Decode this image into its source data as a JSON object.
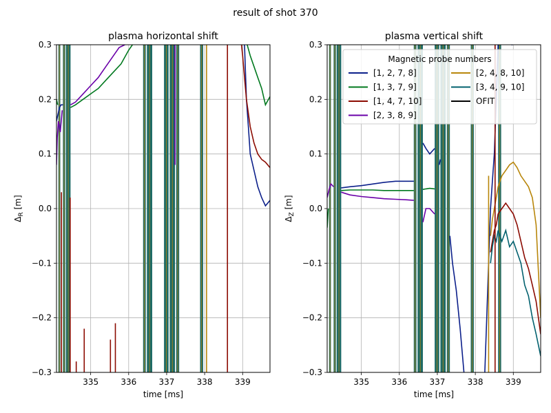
{
  "figure": {
    "suptitle": "result of shot 370"
  },
  "colors": {
    "series": [
      "#0b1f8a",
      "#00781e",
      "#8b0a00",
      "#6a00a8",
      "#b8860b",
      "#00606e",
      "#000000"
    ],
    "grid": "#b0b0b0",
    "band": "#1f6b66"
  },
  "chart_data": [
    {
      "type": "line",
      "title": "plasma horizontal shift",
      "xlabel": "time [ms]",
      "ylabel_main": "Δ",
      "ylabel_sub": "R",
      "ylabel_unit": " [m]",
      "xlim": [
        334.1,
        339.72
      ],
      "ylim": [
        -0.3,
        0.3
      ],
      "xticks": [
        335,
        336,
        337,
        338,
        339
      ],
      "yticks": [
        -0.3,
        -0.2,
        -0.1,
        0.0,
        0.1,
        0.2,
        0.3
      ],
      "ytick_labels": [
        "−0.3",
        "−0.2",
        "−0.1",
        "0.0",
        "0.1",
        "0.2",
        "0.3"
      ],
      "grid": true,
      "bands": [
        [
          334.15,
          334.2
        ],
        [
          334.27,
          334.33
        ],
        [
          334.35,
          334.47
        ],
        [
          336.38,
          336.45
        ],
        [
          336.48,
          336.62
        ],
        [
          336.93,
          337.05
        ],
        [
          337.08,
          337.22
        ],
        [
          337.25,
          337.33
        ],
        [
          337.88,
          337.96
        ]
      ],
      "series": [
        {
          "x": [
            334.1,
            334.13,
            334.18,
            334.22,
            334.27
          ],
          "y": [
            0.16,
            0.17,
            0.185,
            0.19,
            0.19
          ]
        },
        {
          "x": [
            334.1,
            334.13
          ],
          "y": [
            0.2,
            0.19
          ]
        },
        {
          "x": [
            334.1,
            334.12,
            334.15,
            334.2,
            334.25
          ],
          "y": [
            0.08,
            0.13,
            0.16,
            0.14,
            0.18
          ]
        },
        {
          "x": [
            334.47,
            334.6,
            334.8,
            335.0,
            335.2,
            335.4,
            335.6,
            335.75,
            335.9
          ],
          "y": [
            0.19,
            0.195,
            0.21,
            0.225,
            0.24,
            0.26,
            0.28,
            0.295,
            0.3
          ]
        },
        {
          "x": [
            334.47,
            334.6,
            334.8,
            335.0,
            335.2,
            335.4,
            335.6,
            335.8,
            336.0,
            336.1
          ],
          "y": [
            0.185,
            0.19,
            0.2,
            0.21,
            0.22,
            0.235,
            0.25,
            0.265,
            0.29,
            0.3
          ]
        },
        {
          "x": [
            339.05,
            339.1,
            339.15,
            339.2,
            339.3,
            339.4,
            339.5,
            339.6,
            339.72
          ],
          "y": [
            0.3,
            0.2,
            0.15,
            0.1,
            0.07,
            0.04,
            0.02,
            0.005,
            0.015
          ]
        },
        {
          "x": [
            339.12,
            339.2,
            339.3,
            339.4,
            339.5,
            339.6,
            339.72
          ],
          "y": [
            0.3,
            0.28,
            0.26,
            0.24,
            0.22,
            0.19,
            0.205
          ]
        },
        {
          "x": [
            338.97,
            339.0,
            339.05,
            339.1,
            339.2,
            339.3,
            339.4,
            339.5,
            339.6,
            339.72
          ],
          "y": [
            0.3,
            0.28,
            0.24,
            0.2,
            0.15,
            0.12,
            0.1,
            0.09,
            0.085,
            0.075
          ]
        }
      ],
      "series_color_index": [
        0,
        1,
        3,
        3,
        1,
        0,
        1,
        2
      ],
      "spikes": [
        {
          "x": 334.23,
          "y": [
            -0.3,
            0.03
          ],
          "c": 2
        },
        {
          "x": 334.46,
          "y": [
            -0.3,
            0.02
          ],
          "c": 2
        },
        {
          "x": 334.62,
          "y": [
            -0.3,
            -0.28
          ],
          "c": 2
        },
        {
          "x": 334.83,
          "y": [
            -0.3,
            -0.22
          ],
          "c": 2
        },
        {
          "x": 335.52,
          "y": [
            -0.3,
            -0.24
          ],
          "c": 2
        },
        {
          "x": 335.65,
          "y": [
            -0.3,
            -0.21
          ],
          "c": 2
        },
        {
          "x": 338.6,
          "y": [
            -0.3,
            0.3
          ],
          "c": 2
        },
        {
          "x": 337.22,
          "y": [
            0.08,
            0.3
          ],
          "c": 3
        },
        {
          "x": 338.05,
          "y": [
            -0.3,
            0.3
          ],
          "c": 4
        }
      ]
    },
    {
      "type": "line",
      "title": "plasma vertical shift",
      "xlabel": "time [ms]",
      "ylabel_main": "Δ",
      "ylabel_sub": "Z",
      "ylabel_unit": " [m]",
      "xlim": [
        334.1,
        339.72
      ],
      "ylim": [
        -0.3,
        0.3
      ],
      "xticks": [
        335,
        336,
        337,
        338,
        339
      ],
      "yticks": [
        -0.3,
        -0.2,
        -0.1,
        0.0,
        0.1,
        0.2,
        0.3
      ],
      "ytick_labels": [
        "−0.3",
        "−0.2",
        "−0.1",
        "0.0",
        "0.1",
        "0.2",
        "0.3"
      ],
      "grid": true,
      "bands": [
        [
          334.15,
          334.2
        ],
        [
          334.27,
          334.33
        ],
        [
          334.35,
          334.47
        ],
        [
          336.38,
          336.45
        ],
        [
          336.48,
          336.62
        ],
        [
          336.93,
          337.05
        ],
        [
          337.08,
          337.22
        ],
        [
          337.25,
          337.33
        ],
        [
          337.88,
          337.96
        ],
        [
          338.6,
          338.68
        ]
      ],
      "series": [
        {
          "x": [
            334.47,
            334.7,
            335.0,
            335.3,
            335.6,
            335.9,
            336.2,
            336.38
          ],
          "y": [
            0.038,
            0.04,
            0.042,
            0.045,
            0.048,
            0.05,
            0.05,
            0.05
          ]
        },
        {
          "x": [
            334.47,
            334.7,
            335.0,
            335.3,
            335.6,
            335.9,
            336.2,
            336.38
          ],
          "y": [
            0.033,
            0.034,
            0.034,
            0.034,
            0.033,
            0.033,
            0.033,
            0.033
          ]
        },
        {
          "x": [
            334.47,
            334.7,
            335.0,
            335.3,
            335.6,
            335.9,
            336.2,
            336.38
          ],
          "y": [
            0.03,
            0.025,
            0.022,
            0.02,
            0.018,
            0.017,
            0.016,
            0.015
          ]
        },
        {
          "x": [
            334.1,
            334.15,
            334.2,
            334.27
          ],
          "y": [
            0.02,
            0.035,
            0.045,
            0.04
          ]
        },
        {
          "x": [
            334.1,
            334.13
          ],
          "y": [
            -0.035,
            0.0
          ]
        },
        {
          "x": [
            336.62,
            336.7,
            336.8,
            336.93
          ],
          "y": [
            0.035,
            0.036,
            0.037,
            0.036
          ]
        },
        {
          "x": [
            336.62,
            336.7,
            336.8,
            336.93
          ],
          "y": [
            0.12,
            0.11,
            0.1,
            0.11
          ]
        },
        {
          "x": [
            336.62,
            336.7,
            336.8,
            336.93
          ],
          "y": [
            -0.025,
            0.0,
            0.0,
            -0.01
          ]
        },
        {
          "x": [
            337.05,
            337.08
          ],
          "y": [
            0.08,
            0.09
          ]
        },
        {
          "x": [
            337.33,
            337.4,
            337.5,
            337.6,
            337.7
          ],
          "y": [
            -0.05,
            -0.1,
            -0.15,
            -0.22,
            -0.3
          ]
        },
        {
          "x": [
            338.25,
            338.3,
            338.35,
            338.4,
            338.45,
            338.5,
            338.55,
            338.6
          ],
          "y": [
            -0.3,
            -0.2,
            -0.1,
            0.0,
            0.05,
            0.1,
            0.2,
            0.3
          ]
        },
        {
          "x": [
            338.4,
            338.45,
            338.5,
            338.55,
            338.6,
            338.7,
            338.8,
            338.9,
            339.0,
            339.1,
            339.2,
            339.3,
            339.4,
            339.5,
            339.6,
            339.72
          ],
          "y": [
            -0.05,
            -0.02,
            0.0,
            0.02,
            0.04,
            0.06,
            0.07,
            0.08,
            0.085,
            0.075,
            0.06,
            0.05,
            0.04,
            0.02,
            -0.03,
            -0.2
          ]
        },
        {
          "x": [
            338.4,
            338.45,
            338.5,
            338.55,
            338.6,
            338.7,
            338.8,
            338.9,
            339.0,
            339.1,
            339.2,
            339.3,
            339.4,
            339.5,
            339.6,
            339.72
          ],
          "y": [
            -0.08,
            -0.06,
            -0.04,
            -0.03,
            -0.01,
            0.0,
            0.01,
            0.0,
            -0.01,
            -0.03,
            -0.06,
            -0.09,
            -0.11,
            -0.14,
            -0.17,
            -0.23
          ]
        },
        {
          "x": [
            338.4,
            338.45,
            338.5,
            338.55,
            338.6,
            338.7,
            338.8,
            338.9,
            339.0,
            339.1,
            339.2,
            339.3,
            339.4,
            339.5,
            339.6,
            339.72
          ],
          "y": [
            -0.1,
            -0.07,
            -0.05,
            -0.06,
            -0.04,
            -0.06,
            -0.04,
            -0.07,
            -0.06,
            -0.08,
            -0.1,
            -0.14,
            -0.16,
            -0.2,
            -0.23,
            -0.27
          ]
        },
        {
          "x": [
            338.95,
            338.98
          ],
          "y": [
            0.3,
            0.3
          ]
        }
      ],
      "series_color_index": [
        0,
        1,
        3,
        3,
        1,
        1,
        0,
        3,
        0,
        0,
        0,
        4,
        2,
        5,
        0
      ],
      "spikes": [
        {
          "x": 338.52,
          "y": [
            -0.3,
            0.3
          ],
          "c": 2
        },
        {
          "x": 338.35,
          "y": [
            -0.3,
            0.06
          ],
          "c": 4
        }
      ],
      "legend": {
        "title": "Magnetic probe numbers",
        "placement": "top-right",
        "entries": [
          "[1, 2, 7, 8]",
          "[1, 3, 7, 9]",
          "[1, 4, 7, 10]",
          "[2, 3, 8, 9]",
          "[2, 4, 8, 10]",
          "[3, 4, 9, 10]",
          "OFIT"
        ]
      }
    }
  ]
}
